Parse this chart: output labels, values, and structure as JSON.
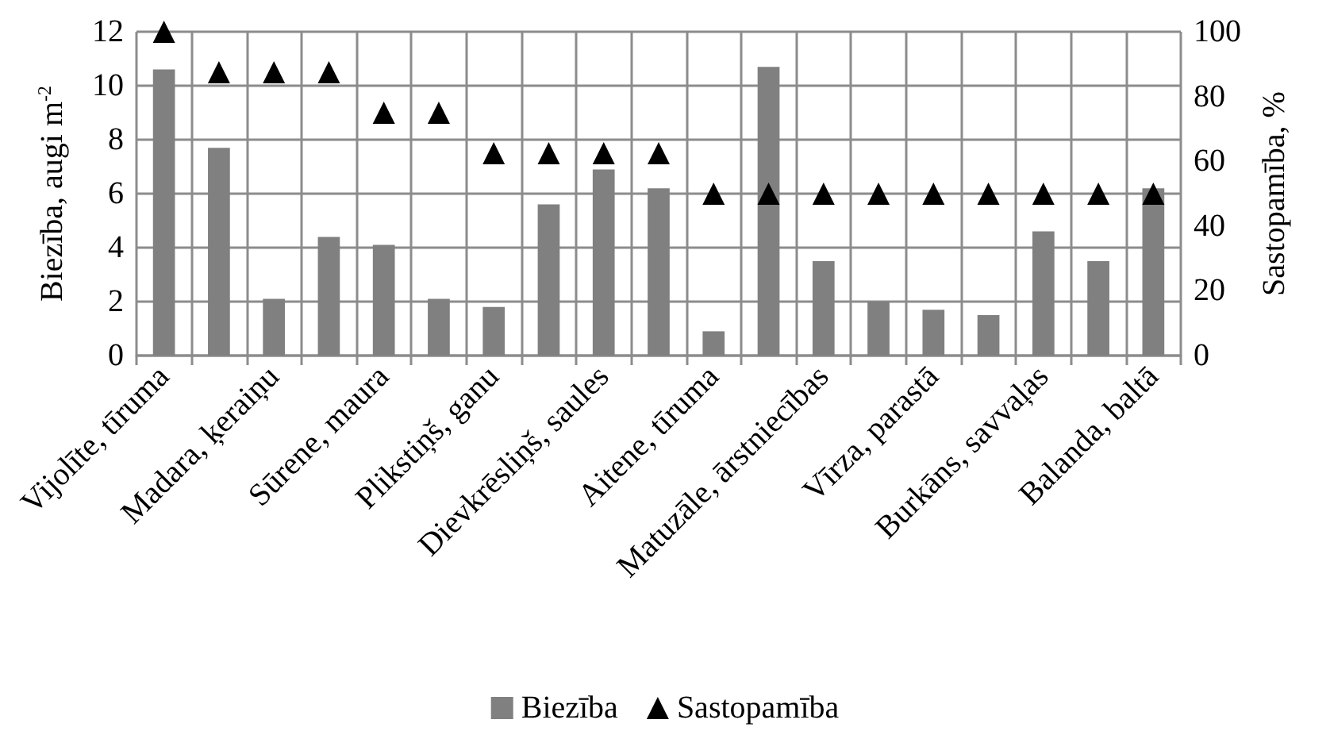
{
  "chart_data": {
    "type": "bar",
    "ylabel": "Biezība, augi m$^{-2}$",
    "y2label": "Sastopamība, %",
    "categories": [
      "Vijolīte, tīruma",
      null,
      "Madara, ķeraiņu",
      null,
      "Sūrene, maura",
      null,
      "Plikstiņš, ganu",
      null,
      "Dievkrēsliņš, saules",
      null,
      "Aitene, tīruma",
      null,
      "Matuzāle, ārstniecības",
      null,
      "Vīrza, parastā",
      null,
      "Burkāns, savvaļas",
      null,
      "Balanda, baltā"
    ],
    "series": [
      {
        "name": "Biezība",
        "color": "#808080",
        "values": [
          10.6,
          7.7,
          2.1,
          4.4,
          4.1,
          2.1,
          1.8,
          5.6,
          6.9,
          6.2,
          0.9,
          10.7,
          3.5,
          2.0,
          1.7,
          1.5,
          4.6,
          3.5,
          6.2
        ]
      },
      {
        "name": "Sastopamība",
        "type": "scatter",
        "axis": "y2",
        "marker": "triangle",
        "color": "#000000",
        "values": [
          100,
          87.5,
          87.5,
          87.5,
          75,
          75,
          62.5,
          62.5,
          62.5,
          62.5,
          50,
          50,
          50,
          50,
          50,
          50,
          50,
          50,
          50
        ]
      }
    ],
    "ylim": [
      0,
      12
    ],
    "yticks": [
      0,
      2,
      4,
      6,
      8,
      10,
      12
    ],
    "y2lim": [
      0,
      100
    ],
    "y2ticks": [
      0,
      20,
      40,
      60,
      80,
      100
    ],
    "grid": true,
    "legend": "bottom"
  }
}
